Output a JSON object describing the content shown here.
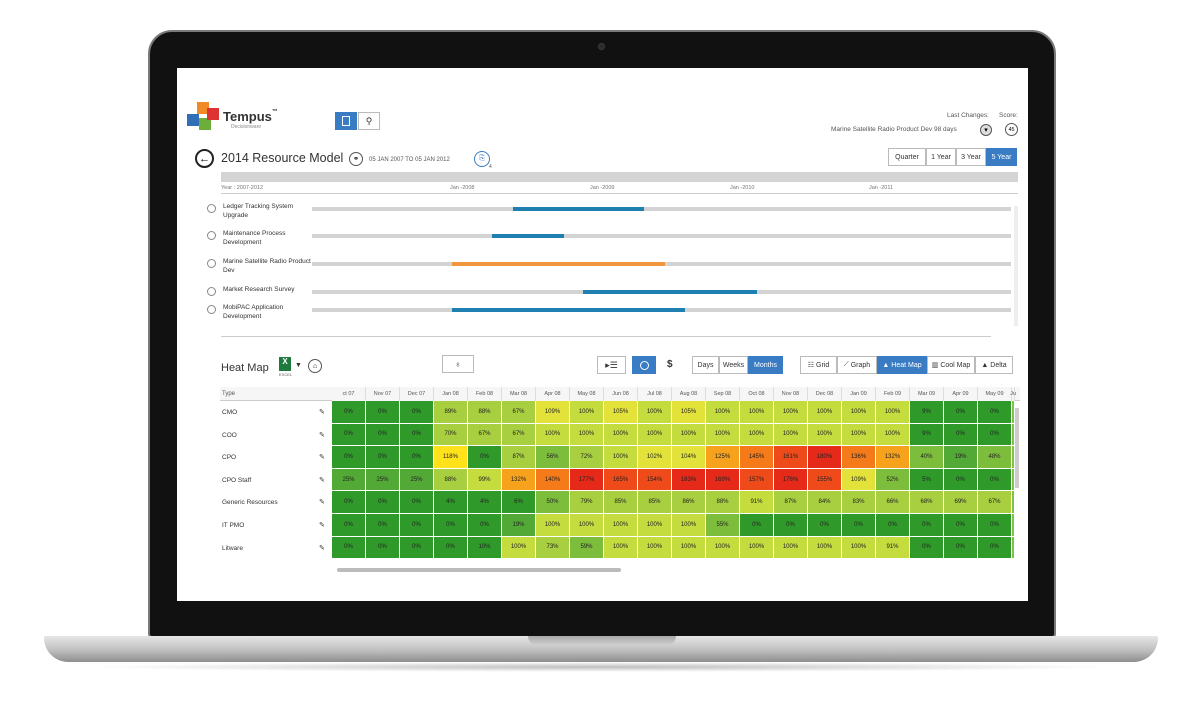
{
  "app": {
    "brand": "Tempus",
    "brand_tm": "™",
    "brand_sub": "Decisionware"
  },
  "header": {
    "last_changes_label": "Last Changes:",
    "score_label": "Score:",
    "last_change_text": "Marine Satellite Radio Product Dev 98 days",
    "score_value": "45"
  },
  "model": {
    "title": "2014 Resource Model",
    "date_range": "05 JAN 2007 TO 05 JAN 2012",
    "badge_sub": "4"
  },
  "range_buttons": [
    {
      "label": "Quarter",
      "active": false
    },
    {
      "label": "1 Year",
      "active": false
    },
    {
      "label": "3 Year",
      "active": false
    },
    {
      "label": "5 Year",
      "active": true
    }
  ],
  "timeline": {
    "axis_labels": [
      "Year : 2007-2012",
      "Jan -2008",
      "Jan -2009",
      "Jan -2010",
      "Jan -2011"
    ],
    "projects": [
      {
        "name": "Ledger Tracking System Upgrade",
        "start": 0.288,
        "end": 0.475,
        "color": "#1f7fb0"
      },
      {
        "name": "Maintenance Process Development",
        "start": 0.257,
        "end": 0.36,
        "color": "#1f7fb0"
      },
      {
        "name": "Marine Satellite Radio Product Dev",
        "start": 0.2,
        "end": 0.505,
        "color": "#f0963c"
      },
      {
        "name": "Market Research Survey",
        "start": 0.387,
        "end": 0.636,
        "color": "#1f7fb0"
      },
      {
        "name": "MobiPAC Application Development",
        "start": 0.2,
        "end": 0.534,
        "color": "#1f7fb0"
      }
    ]
  },
  "heatmap": {
    "title": "Heat Map",
    "excel_label": "EXCEL",
    "dollar_label": "$",
    "period_buttons": [
      {
        "label": "Days",
        "active": false
      },
      {
        "label": "Weeks",
        "active": false
      },
      {
        "label": "Months",
        "active": true
      }
    ],
    "view_buttons": [
      {
        "label": "Grid",
        "active": false
      },
      {
        "label": "Graph",
        "active": false
      },
      {
        "label": "Heat Map",
        "active": true
      },
      {
        "label": "Cool Map",
        "active": false
      },
      {
        "label": "Delta",
        "active": false
      }
    ],
    "type_header": "Type",
    "columns": [
      "ct 07",
      "Nov 07",
      "Dec 07",
      "Jan 08",
      "Feb 08",
      "Mar 08",
      "Apr 08",
      "May 08",
      "Jun 08",
      "Jul 08",
      "Aug 08",
      "Sep 08",
      "Oct 08",
      "Nov 08",
      "Dec 08",
      "Jan 09",
      "Feb 09",
      "Mar 09",
      "Apr 09",
      "May 09",
      "Ju"
    ],
    "rows": [
      {
        "name": "CMO",
        "values": [
          "0%",
          "0%",
          "0%",
          "89%",
          "88%",
          "67%",
          "109%",
          "100%",
          "105%",
          "100%",
          "105%",
          "100%",
          "100%",
          "100%",
          "100%",
          "100%",
          "100%",
          "9%",
          "0%",
          "0%",
          ""
        ]
      },
      {
        "name": "COO",
        "values": [
          "0%",
          "0%",
          "0%",
          "70%",
          "67%",
          "67%",
          "100%",
          "100%",
          "100%",
          "100%",
          "100%",
          "100%",
          "100%",
          "100%",
          "100%",
          "100%",
          "100%",
          "9%",
          "0%",
          "0%",
          ""
        ]
      },
      {
        "name": "CPO",
        "values": [
          "0%",
          "0%",
          "0%",
          "118%",
          "0%",
          "87%",
          "56%",
          "72%",
          "100%",
          "102%",
          "104%",
          "125%",
          "145%",
          "161%",
          "180%",
          "136%",
          "132%",
          "40%",
          "19%",
          "48%",
          ""
        ]
      },
      {
        "name": "CPO Staff",
        "values": [
          "25%",
          "25%",
          "25%",
          "88%",
          "99%",
          "132%",
          "140%",
          "177%",
          "165%",
          "154%",
          "183%",
          "169%",
          "157%",
          "176%",
          "155%",
          "109%",
          "52%",
          "5%",
          "0%",
          "0%",
          ""
        ]
      },
      {
        "name": "Generic Resources",
        "values": [
          "0%",
          "0%",
          "0%",
          "4%",
          "4%",
          "6%",
          "50%",
          "79%",
          "85%",
          "85%",
          "86%",
          "88%",
          "91%",
          "87%",
          "84%",
          "83%",
          "66%",
          "68%",
          "69%",
          "67%",
          ""
        ]
      },
      {
        "name": "IT PMO",
        "values": [
          "0%",
          "0%",
          "0%",
          "0%",
          "0%",
          "19%",
          "100%",
          "100%",
          "100%",
          "100%",
          "100%",
          "55%",
          "0%",
          "0%",
          "0%",
          "0%",
          "0%",
          "0%",
          "0%",
          "0%",
          ""
        ]
      },
      {
        "name": "Litware",
        "values": [
          "0%",
          "0%",
          "0%",
          "0%",
          "10%",
          "100%",
          "73%",
          "59%",
          "100%",
          "100%",
          "100%",
          "100%",
          "100%",
          "100%",
          "100%",
          "100%",
          "91%",
          "0%",
          "0%",
          "0%",
          ""
        ]
      }
    ]
  }
}
